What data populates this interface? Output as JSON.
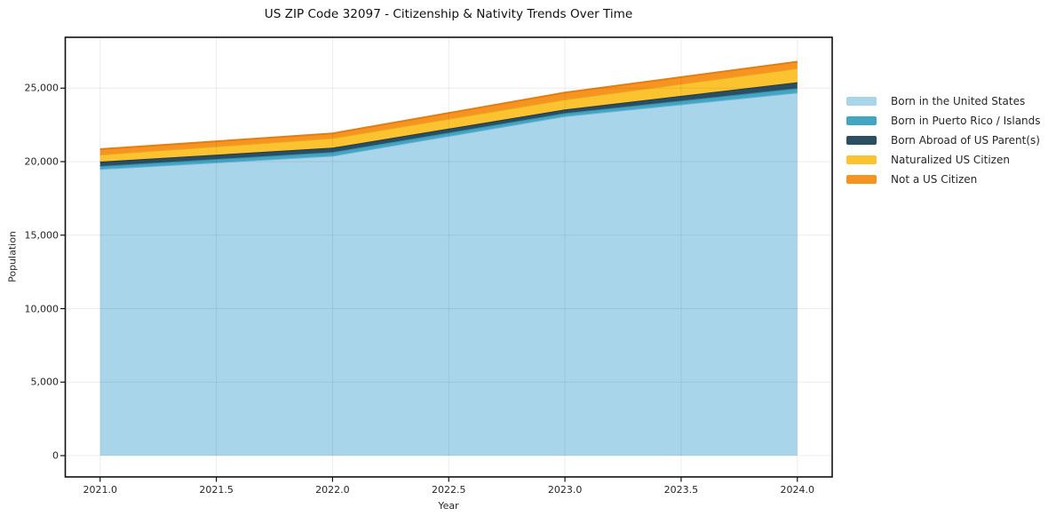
{
  "chart_data": {
    "type": "area",
    "stacked": true,
    "title": "US ZIP Code 32097 - Citizenship & Nativity Trends Over Time",
    "xlabel": "Year",
    "ylabel": "Population",
    "x": [
      2021,
      2022,
      2023,
      2024
    ],
    "series": [
      {
        "id": "born-in-us",
        "name": "Born in the United States",
        "values": [
          19500,
          20400,
          23100,
          24700
        ],
        "fill": "#a9d5ea",
        "edge": "#6fb0d4"
      },
      {
        "id": "born-pr-islands",
        "name": "Born in Puerto Rico / Islands",
        "values": [
          200,
          250,
          200,
          300
        ],
        "fill": "#42a6c3",
        "edge": "#2f90ad"
      },
      {
        "id": "born-abroad-us-parents",
        "name": "Born Abroad of US Parent(s)",
        "values": [
          300,
          300,
          250,
          400
        ],
        "fill": "#2b4e63",
        "edge": "#203c4e"
      },
      {
        "id": "naturalized-citizen",
        "name": "Naturalized US Citizen",
        "values": [
          480,
          650,
          680,
          950
        ],
        "fill": "#fcc330",
        "edge": "#eaa91f"
      },
      {
        "id": "not-us-citizen",
        "name": "Not a US Citizen",
        "values": [
          370,
          320,
          470,
          450
        ],
        "fill": "#f79421",
        "edge": "#e27f12"
      }
    ],
    "stacked_totals": [
      20850,
      21920,
      24700,
      26800
    ],
    "x_ticks": {
      "values": [
        2021.0,
        2021.5,
        2022.0,
        2022.5,
        2023.0,
        2023.5,
        2024.0
      ],
      "labels": [
        "2021.0",
        "2021.5",
        "2022.0",
        "2022.5",
        "2023.0",
        "2023.5",
        "2024.0"
      ]
    },
    "y_ticks": {
      "values": [
        0,
        5000,
        10000,
        15000,
        20000,
        25000
      ],
      "labels": [
        "0",
        "5,000",
        "10,000",
        "15,000",
        "20,000",
        "25,000"
      ]
    },
    "xlim": [
      2020.85,
      2024.15
    ],
    "ylim": [
      -1450,
      28460
    ],
    "grid": true,
    "legend_position": "right-outside",
    "colors": {
      "grid": "rgba(0,0,0,0.075)",
      "spine": "#111111",
      "tick": "#111111",
      "text": "#262626",
      "background": "#ffffff"
    }
  }
}
